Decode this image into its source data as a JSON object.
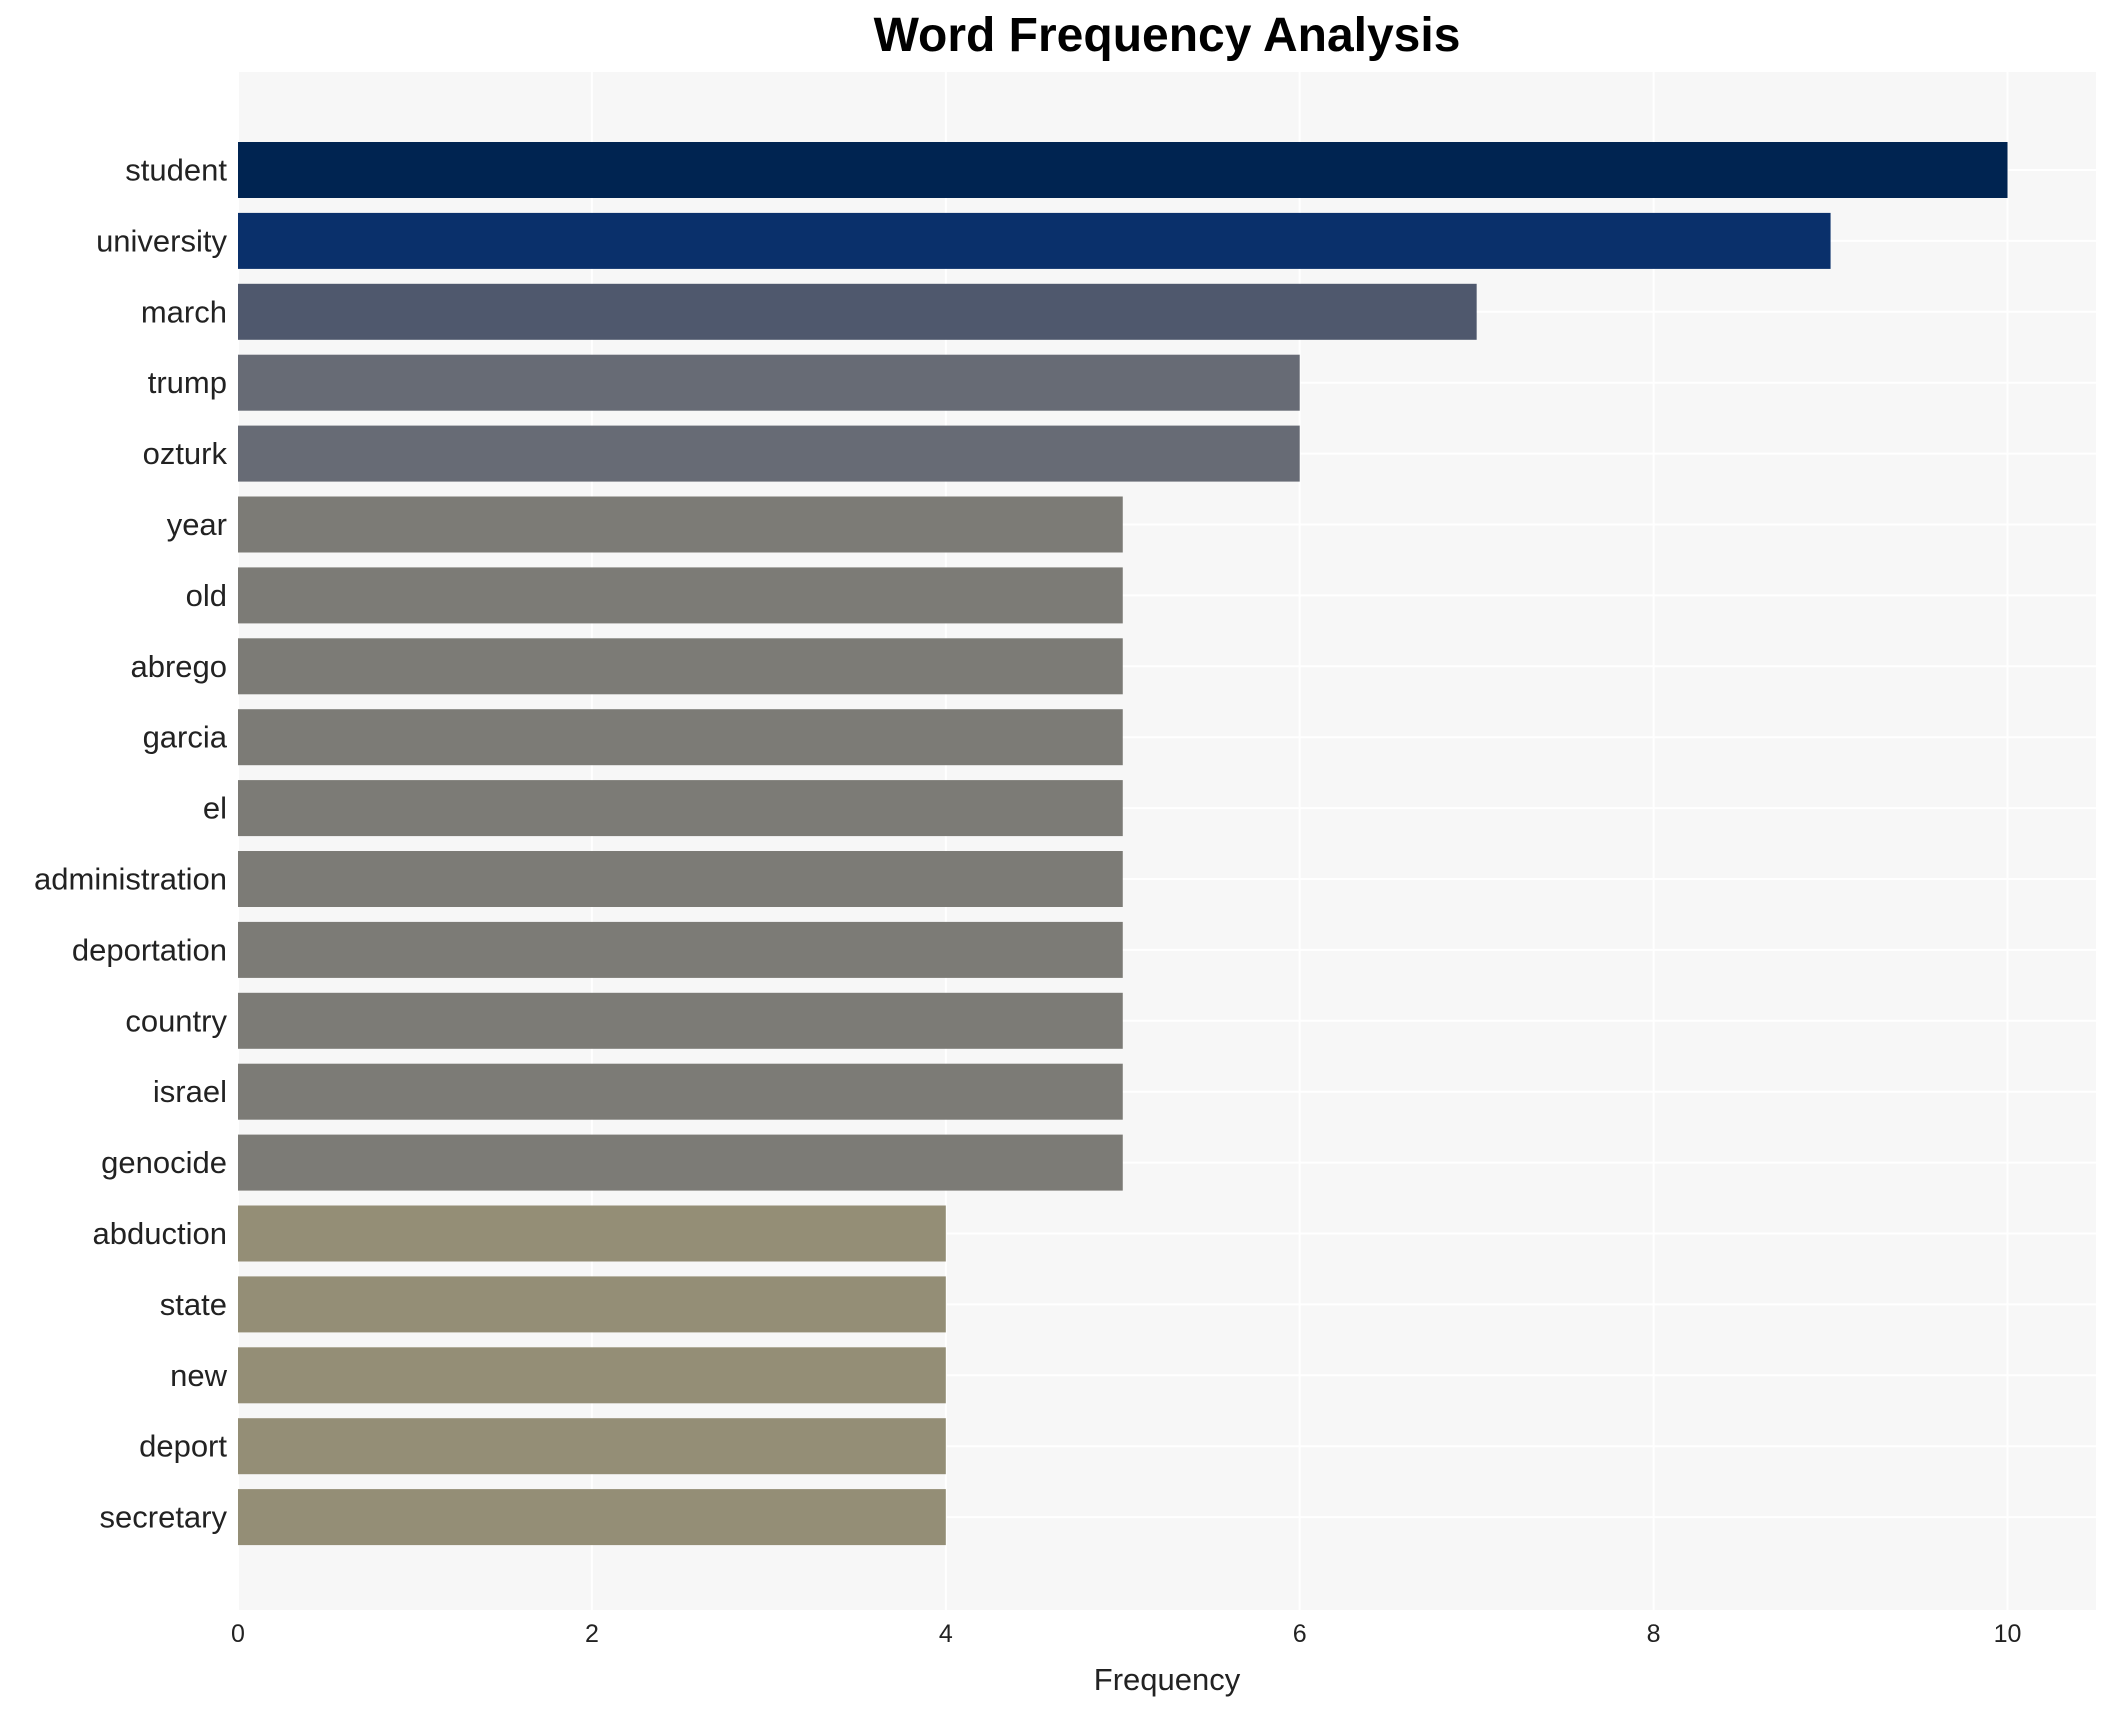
{
  "chart_data": {
    "type": "bar",
    "orientation": "horizontal",
    "title": "Word Frequency Analysis",
    "xlabel": "Frequency",
    "ylabel": "",
    "xlim": [
      0,
      10.5
    ],
    "xticks": [
      0,
      2,
      4,
      6,
      8,
      10
    ],
    "grid": true,
    "categories": [
      "student",
      "university",
      "march",
      "trump",
      "ozturk",
      "year",
      "old",
      "abrego",
      "garcia",
      "el",
      "administration",
      "deportation",
      "country",
      "israel",
      "genocide",
      "abduction",
      "state",
      "new",
      "deport",
      "secretary"
    ],
    "values": [
      10,
      9,
      7,
      6,
      6,
      5,
      5,
      5,
      5,
      5,
      5,
      5,
      5,
      5,
      5,
      4,
      4,
      4,
      4,
      4
    ],
    "colors": [
      "#002451",
      "#0a306b",
      "#4f586d",
      "#676b75",
      "#676b75",
      "#7c7b76",
      "#7c7b76",
      "#7c7b76",
      "#7c7b76",
      "#7c7b76",
      "#7c7b76",
      "#7c7b76",
      "#7c7b76",
      "#7c7b76",
      "#7c7b76",
      "#948e76",
      "#948e76",
      "#948e76",
      "#948e76",
      "#948e76"
    ],
    "background": "#f7f7f7",
    "grid_color": "#ffffff"
  }
}
